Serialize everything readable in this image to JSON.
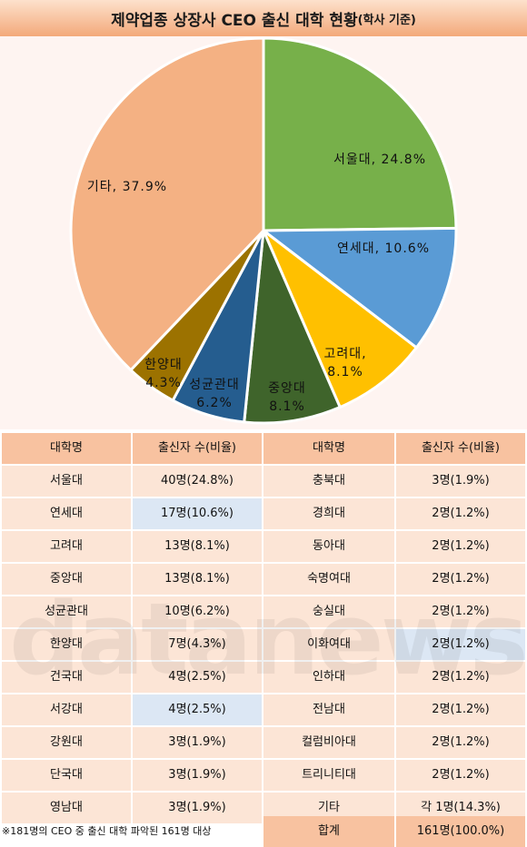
{
  "title": "제약업종 상장사 CEO 출신 대학 현황",
  "title_suffix": "(학사 기준)",
  "chart_data": {
    "type": "pie",
    "slices": [
      {
        "label": "서울대, 24.8%",
        "value": 24.8,
        "color": "#77b04a"
      },
      {
        "label": "연세대, 10.6%",
        "value": 10.6,
        "color": "#5a9bd5"
      },
      {
        "label": "고려대,",
        "label2": "8.1%",
        "value": 8.1,
        "color": "#ffc000"
      },
      {
        "label": "중앙대",
        "label2": "8.1%",
        "value": 8.1,
        "color": "#3f642b"
      },
      {
        "label": "성균관대",
        "label2": "6.2%",
        "value": 6.2,
        "color": "#255d8f"
      },
      {
        "label": "한양대",
        "label2": "4.3%",
        "value": 4.3,
        "color": "#9c7200"
      },
      {
        "label": "기타, 37.9%",
        "value": 37.9,
        "color": "#f4b183"
      }
    ]
  },
  "table": {
    "headers": [
      "대학명",
      "출신자 수(비율)",
      "대학명",
      "출신자 수(비율)"
    ],
    "rows": [
      {
        "u1": "서울대",
        "v1": "40명(24.8%)",
        "u2": "충북대",
        "v2": "3명(1.9%)"
      },
      {
        "u1": "연세대",
        "v1": "17명(10.6%)",
        "u2": "경희대",
        "v2": "2명(1.2%)"
      },
      {
        "u1": "고려대",
        "v1": "13명(8.1%)",
        "u2": "동아대",
        "v2": "2명(1.2%)"
      },
      {
        "u1": "중앙대",
        "v1": "13명(8.1%)",
        "u2": "숙명여대",
        "v2": "2명(1.2%)"
      },
      {
        "u1": "성균관대",
        "v1": "10명(6.2%)",
        "u2": "숭실대",
        "v2": "2명(1.2%)"
      },
      {
        "u1": "한양대",
        "v1": "7명(4.3%)",
        "u2": "이화여대",
        "v2": "2명(1.2%)"
      },
      {
        "u1": "건국대",
        "v1": "4명(2.5%)",
        "u2": "인하대",
        "v2": "2명(1.2%)"
      },
      {
        "u1": "서강대",
        "v1": "4명(2.5%)",
        "u2": "전남대",
        "v2": "2명(1.2%)"
      },
      {
        "u1": "강원대",
        "v1": "3명(1.9%)",
        "u2": "컬럼비아대",
        "v2": "2명(1.2%)"
      },
      {
        "u1": "단국대",
        "v1": "3명(1.9%)",
        "u2": "트리니티대",
        "v2": "2명(1.2%)"
      },
      {
        "u1": "영남대",
        "v1": "3명(1.9%)",
        "u2": "기타",
        "v2": "각 1명(14.3%)"
      }
    ],
    "note": "※181명의 CEO 중 출신 대학 파악된 161명 대상",
    "total_label": "합계",
    "total_value": "161명(100.0%)"
  },
  "watermark": "datanews"
}
